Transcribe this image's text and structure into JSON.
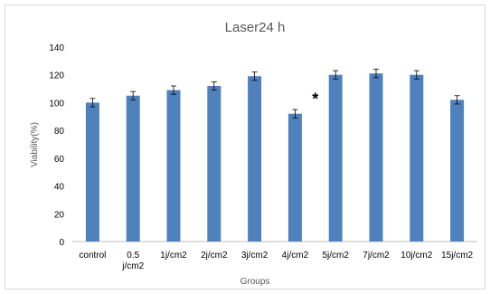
{
  "chart_data": {
    "type": "bar",
    "title": "Laser24 h",
    "xlabel": "Groups",
    "ylabel": "Viability(%)",
    "ylim": [
      0,
      140
    ],
    "yticks": [
      0,
      20,
      40,
      60,
      80,
      100,
      120,
      140
    ],
    "grid": false,
    "legend": "none",
    "categories": [
      [
        "control"
      ],
      [
        "0.5",
        "j/cm2"
      ],
      [
        "1j/cm2"
      ],
      [
        "2j/cm2"
      ],
      [
        "3j/cm2"
      ],
      [
        "4j/cm2"
      ],
      [
        "5j/cm2"
      ],
      [
        "7j/cm2"
      ],
      [
        "10j/cm2"
      ],
      [
        "15j/cm2"
      ]
    ],
    "values": [
      100,
      105,
      109,
      112,
      119,
      92,
      120,
      121,
      120,
      102
    ],
    "errors": [
      3,
      3,
      3,
      3,
      3,
      3,
      3,
      3,
      3,
      3
    ],
    "annotations": [
      {
        "text": "*",
        "category_index": 5
      }
    ],
    "bar_color": "#4f81bd",
    "axis_color": "#bfbfbf"
  }
}
